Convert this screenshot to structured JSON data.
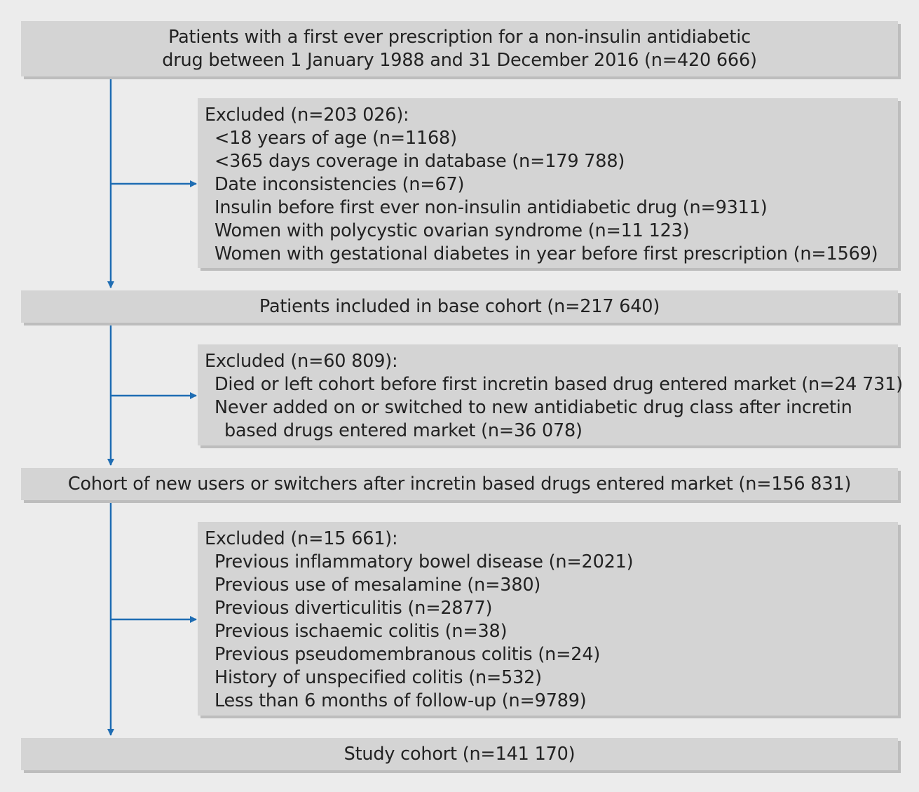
{
  "boxes": {
    "start": {
      "lines": [
        "Patients with a first ever prescription for a non-insulin antidiabetic",
        "drug between 1 January 1988 and 31 December 2016 (n=420 666)"
      ]
    },
    "exclusion1": {
      "heading": "Excluded (n=203 026):",
      "items": [
        "<18 years of age (n=1168)",
        "<365 days coverage in database (n=179 788)",
        "Date inconsistencies (n=67)",
        "Insulin before first ever non-insulin antidiabetic drug (n=9311)",
        "Women with polycystic ovarian syndrome (n=11 123)",
        "Women with gestational diabetes in year before first prescription (n=1569)"
      ]
    },
    "base_cohort": {
      "text": "Patients included in base cohort (n=217 640)"
    },
    "exclusion2": {
      "heading": "Excluded (n=60 809):",
      "items": [
        "Died or left cohort before first incretin based drug entered market (n=24 731)",
        "Never added on or switched to new antidiabetic drug class after incretin",
        "based drugs entered market (n=36 078)"
      ]
    },
    "new_users_cohort": {
      "text": "Cohort of new users or switchers after incretin based drugs entered market (n=156 831)"
    },
    "exclusion3": {
      "heading": "Excluded (n=15 661):",
      "items": [
        "Previous inflammatory bowel disease (n=2021)",
        "Previous use of mesalamine (n=380)",
        "Previous diverticulitis (n=2877)",
        "Previous ischaemic colitis (n=38)",
        "Previous pseudomembranous colitis (n=24)",
        "History of unspecified colitis (n=532)",
        "Less than 6 months of follow-up (n=9789)"
      ]
    },
    "study_cohort": {
      "text": "Study cohort (n=141 170)"
    }
  },
  "colors": {
    "arrow": "#1f6db3",
    "box_fill": "#d4d4d4",
    "box_shadow": "#bdbdbd",
    "background": "#ececec"
  }
}
